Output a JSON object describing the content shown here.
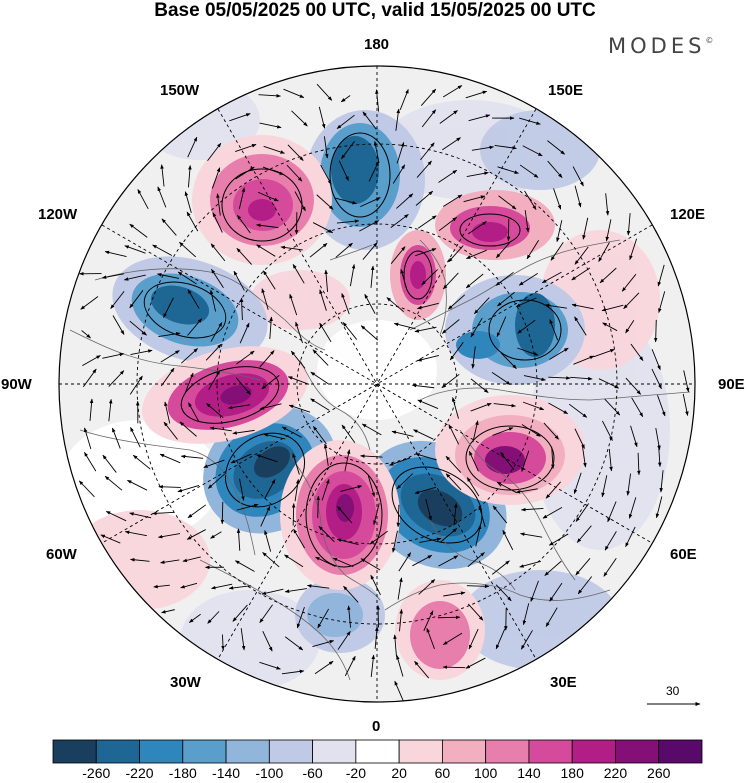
{
  "title": "Base 05/05/2025 00 UTC, valid 15/05/2025 00 UTC",
  "brand": "MODES",
  "brand_mark": "©",
  "longitude_labels": {
    "lon_180": "180",
    "lon_150w": "150W",
    "lon_150e": "150E",
    "lon_120w": "120W",
    "lon_120e": "120E",
    "lon_90w": "90W",
    "lon_90e": "90E",
    "lon_60w": "60W",
    "lon_60e": "60E",
    "lon_30w": "30W",
    "lon_30e": "30E",
    "lon_0": "0"
  },
  "reference_vector": "30",
  "colorbar": {
    "ticks": [
      "-260",
      "-220",
      "-180",
      "-140",
      "-100",
      "-60",
      "-20",
      "20",
      "60",
      "100",
      "140",
      "180",
      "220",
      "260"
    ],
    "colors": [
      "#1a3f5e",
      "#1e6694",
      "#2e86bd",
      "#5a9fcc",
      "#92b5db",
      "#c0cae6",
      "#e2e2ef",
      "#ffffff",
      "#f8d6dc",
      "#f1afc0",
      "#e87eab",
      "#d54a9a",
      "#b21e86",
      "#840f77",
      "#58096a"
    ]
  }
}
